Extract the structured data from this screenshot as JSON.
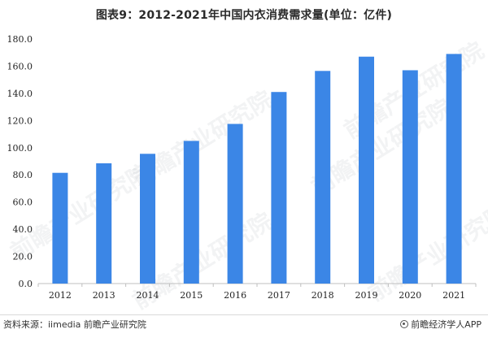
{
  "title": "图表9：2012-2021年中国内衣消费需求量(单位：亿件)",
  "source_text": "资料来源：iimedia 前瞻产业研究院",
  "brand_text": "前瞻经济学人APP",
  "watermark_text": "前瞻产业研究院",
  "colors": {
    "bar": "#3b86e6",
    "axis": "#bfbfbf"
  },
  "chart_data": {
    "type": "bar",
    "title": "图表9：2012-2021年中国内衣消费需求量(单位：亿件)",
    "xlabel": "",
    "ylabel": "",
    "categories": [
      "2012",
      "2013",
      "2014",
      "2015",
      "2016",
      "2017",
      "2018",
      "2019",
      "2020",
      "2021"
    ],
    "values": [
      81.5,
      88.5,
      95.5,
      105.0,
      117.5,
      141.0,
      156.5,
      167.0,
      157.0,
      169.0
    ],
    "ylim": [
      0,
      180
    ],
    "yticks": [
      "0.0",
      "20.0",
      "40.0",
      "60.0",
      "80.0",
      "100.0",
      "120.0",
      "140.0",
      "160.0",
      "180.0"
    ],
    "grid": false,
    "legend": "none"
  }
}
